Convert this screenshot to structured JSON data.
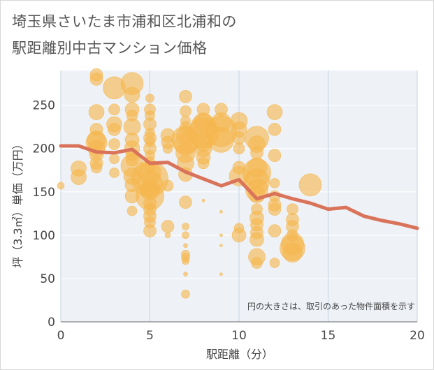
{
  "title_line1": "埼玉県さいたま市浦和区北浦和の",
  "title_line2": "駅距離別中古マンション価格",
  "chart_data": {
    "type": "scatter",
    "xlabel": "駅距離（分）",
    "ylabel": "坪（3.3㎡）単価（万円）",
    "xlim": [
      0,
      20
    ],
    "ylim": [
      0,
      290
    ],
    "x_ticks": [
      "0",
      "5",
      "10",
      "15",
      "20"
    ],
    "y_ticks": [
      "0",
      "50",
      "100",
      "150",
      "200",
      "250"
    ],
    "grid": true,
    "note": "円の大きさは、取引のあった物件面積を示す",
    "bubble_color": "#f5b74e",
    "line_color": "#d9735a",
    "bubbles": [
      [
        0,
        157,
        5
      ],
      [
        1,
        177,
        11
      ],
      [
        1,
        167,
        11
      ],
      [
        2,
        285,
        9
      ],
      [
        2,
        280,
        9
      ],
      [
        2,
        242,
        11
      ],
      [
        2,
        222,
        9
      ],
      [
        2,
        210,
        13
      ],
      [
        2,
        207,
        15
      ],
      [
        2,
        200,
        12
      ],
      [
        2,
        193,
        10
      ],
      [
        2,
        183,
        9
      ],
      [
        2,
        178,
        8
      ],
      [
        3,
        270,
        16
      ],
      [
        3,
        245,
        8
      ],
      [
        3,
        228,
        11
      ],
      [
        3,
        222,
        9
      ],
      [
        3,
        205,
        8
      ],
      [
        3,
        188,
        7
      ],
      [
        3,
        172,
        7
      ],
      [
        4,
        275,
        16
      ],
      [
        4,
        262,
        11
      ],
      [
        4,
        245,
        10
      ],
      [
        4,
        238,
        8
      ],
      [
        4,
        225,
        12
      ],
      [
        4,
        210,
        10
      ],
      [
        4,
        200,
        11
      ],
      [
        4,
        193,
        9
      ],
      [
        4,
        187,
        9
      ],
      [
        4,
        180,
        16
      ],
      [
        4,
        168,
        12
      ],
      [
        4,
        158,
        10
      ],
      [
        4,
        145,
        10
      ],
      [
        4,
        128,
        7
      ],
      [
        5,
        258,
        6
      ],
      [
        5,
        245,
        8
      ],
      [
        5,
        238,
        7
      ],
      [
        5,
        228,
        9
      ],
      [
        5,
        218,
        7
      ],
      [
        5,
        212,
        9
      ],
      [
        5,
        208,
        7
      ],
      [
        5,
        200,
        9
      ],
      [
        5,
        192,
        7
      ],
      [
        5,
        185,
        7
      ],
      [
        5,
        178,
        8
      ],
      [
        5,
        172,
        16
      ],
      [
        5,
        165,
        26
      ],
      [
        5,
        160,
        18
      ],
      [
        5,
        152,
        14
      ],
      [
        5,
        145,
        20
      ],
      [
        5,
        137,
        9
      ],
      [
        5,
        130,
        9
      ],
      [
        5,
        122,
        9
      ],
      [
        5,
        115,
        8
      ],
      [
        5,
        105,
        9
      ],
      [
        6,
        215,
        10
      ],
      [
        6,
        207,
        9
      ],
      [
        6,
        200,
        7
      ],
      [
        6,
        157,
        8
      ],
      [
        6,
        110,
        9
      ],
      [
        6,
        100,
        4
      ],
      [
        7,
        260,
        9
      ],
      [
        7,
        243,
        8
      ],
      [
        7,
        232,
        7
      ],
      [
        7,
        225,
        8
      ],
      [
        7,
        215,
        13
      ],
      [
        7,
        210,
        20
      ],
      [
        7,
        205,
        16
      ],
      [
        7,
        195,
        14
      ],
      [
        7,
        183,
        12
      ],
      [
        7,
        170,
        10
      ],
      [
        7,
        138,
        9
      ],
      [
        7,
        110,
        5
      ],
      [
        7,
        100,
        5
      ],
      [
        7,
        88,
        3
      ],
      [
        7,
        78,
        6
      ],
      [
        7,
        74,
        6
      ],
      [
        7,
        70,
        5
      ],
      [
        7,
        55,
        3
      ],
      [
        7,
        32,
        6
      ],
      [
        8,
        245,
        9
      ],
      [
        8,
        230,
        14
      ],
      [
        8,
        225,
        18
      ],
      [
        8,
        218,
        22
      ],
      [
        8,
        208,
        14
      ],
      [
        8,
        200,
        12
      ],
      [
        8,
        190,
        10
      ],
      [
        8,
        183,
        8
      ],
      [
        8,
        140,
        2
      ],
      [
        9,
        245,
        9
      ],
      [
        9,
        230,
        14
      ],
      [
        9,
        220,
        22
      ],
      [
        9,
        210,
        18
      ],
      [
        9,
        127,
        2
      ],
      [
        9,
        100,
        2
      ],
      [
        9,
        88,
        2
      ],
      [
        9,
        55,
        2
      ],
      [
        10,
        232,
        12
      ],
      [
        10,
        222,
        11
      ],
      [
        10,
        212,
        9
      ],
      [
        10,
        200,
        8
      ],
      [
        10,
        178,
        9
      ],
      [
        10,
        168,
        14
      ],
      [
        10,
        108,
        7
      ],
      [
        10,
        100,
        10
      ],
      [
        11,
        212,
        17
      ],
      [
        11,
        205,
        12
      ],
      [
        11,
        195,
        9
      ],
      [
        11,
        178,
        14
      ],
      [
        11,
        172,
        20
      ],
      [
        11,
        162,
        18
      ],
      [
        11,
        152,
        16
      ],
      [
        11,
        147,
        12
      ],
      [
        11,
        130,
        8
      ],
      [
        11,
        120,
        10
      ],
      [
        11,
        112,
        9
      ],
      [
        11,
        103,
        9
      ],
      [
        11,
        95,
        10
      ],
      [
        11,
        75,
        12
      ],
      [
        11,
        68,
        8
      ],
      [
        12,
        242,
        11
      ],
      [
        12,
        222,
        9
      ],
      [
        12,
        192,
        9
      ],
      [
        12,
        160,
        7
      ],
      [
        12,
        145,
        8
      ],
      [
        12,
        135,
        9
      ],
      [
        12,
        130,
        9
      ],
      [
        12,
        105,
        9
      ],
      [
        12,
        68,
        7
      ],
      [
        13,
        130,
        8
      ],
      [
        13,
        118,
        9
      ],
      [
        13,
        110,
        9
      ],
      [
        13,
        100,
        8
      ],
      [
        13,
        90,
        16
      ],
      [
        13,
        85,
        18
      ],
      [
        13,
        80,
        14
      ],
      [
        14,
        158,
        16
      ]
    ],
    "avg_line": {
      "x": [
        0,
        1,
        2,
        3,
        4,
        5,
        6,
        7,
        8,
        9,
        10,
        11,
        12,
        13,
        14,
        15,
        16,
        17,
        18,
        19,
        20
      ],
      "y": [
        203,
        203,
        196,
        195,
        199,
        183,
        184,
        173,
        165,
        157,
        164,
        142,
        148,
        142,
        137,
        130,
        132,
        122,
        117,
        113,
        108
      ]
    }
  }
}
